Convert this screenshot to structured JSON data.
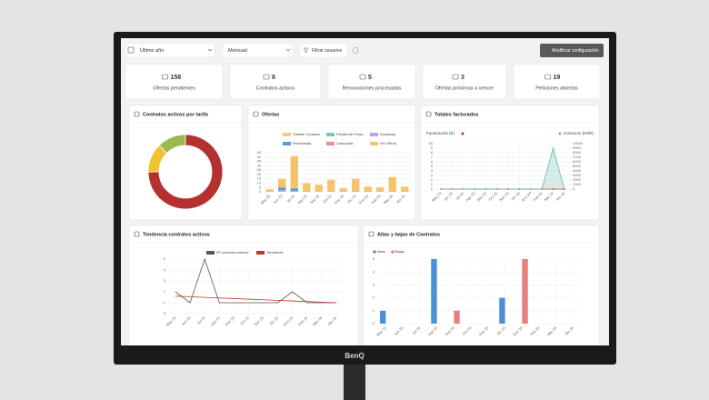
{
  "monitor": {
    "brand": "BenQ"
  },
  "toolbar": {
    "period": "Último año",
    "granularity": "Mensual",
    "filter": "Filtrar usuarios",
    "settings": "Modificar configuración"
  },
  "stats": [
    {
      "value": 158,
      "label": "Ofertas pendientes"
    },
    {
      "value": 8,
      "label": "Contratos activos"
    },
    {
      "value": 5,
      "label": "Renovaciones procesadas"
    },
    {
      "value": 3,
      "label": "Ofertas próximas a vencer"
    },
    {
      "value": 19,
      "label": "Peticiones abiertas"
    }
  ],
  "panels": [
    {
      "title": "Contratos activos por tarifa",
      "type": "pie",
      "values": [
        6,
        1,
        1
      ],
      "colors": [
        "#b5312f",
        "#f2c12e",
        "#9bb84f"
      ]
    },
    {
      "title": "Ofertas",
      "type": "bar",
      "stacked": true,
      "categories": [
        "May 23",
        "Jun 23",
        "Jul 23",
        "Ago 23",
        "Sep 23",
        "Oct 23",
        "Nov 23",
        "Dic 23",
        "Ene 24",
        "Feb 24",
        "Mar 24",
        "Abr 24"
      ],
      "series": [
        {
          "name": "Trámite Contrato",
          "color": "#f7c97e",
          "values": [
            0,
            0,
            0,
            0,
            0,
            0,
            0,
            0,
            0,
            0,
            0,
            0
          ]
        },
        {
          "name": "Pendiente Firma",
          "color": "#7cc6b6",
          "values": [
            0,
            0,
            0,
            0,
            0,
            0,
            0,
            0,
            0,
            0,
            0,
            0
          ]
        },
        {
          "name": "Aceptada",
          "color": "#b9a6dc",
          "values": [
            0,
            2,
            1,
            0,
            0,
            0,
            0,
            0,
            0,
            0,
            0,
            0
          ]
        },
        {
          "name": "Rechazada",
          "color": "#5b9bd5",
          "values": [
            0,
            3,
            3,
            0,
            0,
            0,
            0,
            0,
            0,
            0,
            0,
            0
          ]
        },
        {
          "name": "Caducada",
          "color": "#ee8e8e",
          "values": [
            0,
            0,
            0,
            0,
            0,
            0,
            0,
            0,
            0,
            0,
            0,
            0
          ]
        },
        {
          "name": "Sin Oferta",
          "color": "#f3c46b",
          "values": [
            3,
            10,
            37,
            10,
            8,
            14,
            4,
            15,
            6,
            5,
            17,
            6
          ]
        }
      ],
      "ylim": [
        0,
        45
      ],
      "yticks": [
        0,
        5,
        10,
        15,
        20,
        25,
        30,
        35,
        40,
        45
      ],
      "grid": true
    },
    {
      "title": "Totales facturados",
      "type": "line",
      "categories": [
        "May 23",
        "Jun 23",
        "Jul 23",
        "Ago 23",
        "Sep 23",
        "Oct 23",
        "Nov 23",
        "Dic 23",
        "Ene 24",
        "Feb 24",
        "Mar 24",
        "Abr 24"
      ],
      "series": [
        {
          "name": "Facturación (€)",
          "color": "#c0392b",
          "values": [
            0,
            0,
            0,
            0,
            0,
            0,
            0,
            0,
            0,
            0,
            0,
            0
          ],
          "markers": true
        },
        {
          "name": "Consumo (kWh)",
          "color": "#5fb8a8",
          "values": [
            0,
            0,
            0,
            0,
            0,
            0,
            0,
            0,
            0,
            0,
            9000,
            0
          ],
          "axis": "y2",
          "fill": true
        }
      ],
      "ylim": [
        0,
        10
      ],
      "yticks": [
        0,
        1,
        2,
        3,
        4,
        5,
        6,
        7,
        8,
        9,
        10
      ],
      "y2lim": [
        0,
        10000
      ],
      "y2ticks": [
        0,
        1000,
        2000,
        3000,
        4000,
        5000,
        6000,
        7000,
        8000,
        9000,
        10000
      ],
      "grid": true
    },
    {
      "title": "Tendencia contratos activos",
      "type": "line",
      "categories": [
        "May 23",
        "Jun 23",
        "Jul 23",
        "Ago 23",
        "Sep 23",
        "Oct 23",
        "Nov 23",
        "Dic 23",
        "Ene 24",
        "Feb 24",
        "Mar 24",
        "Abr 24"
      ],
      "series": [
        {
          "name": "Nº contratos activos",
          "color": "#555555",
          "values": [
            2,
            1,
            5,
            1,
            1,
            1,
            1,
            1,
            2,
            1,
            1,
            1
          ]
        },
        {
          "name": "Tendencia",
          "color": "#c0392b",
          "values": [
            1.6,
            1.55,
            1.49,
            1.44,
            1.38,
            1.33,
            1.27,
            1.22,
            1.16,
            1.11,
            1.05,
            1.0
          ]
        }
      ],
      "ylim": [
        0,
        5
      ],
      "yticks": [
        0,
        1,
        2,
        3,
        4,
        5
      ],
      "grid": true
    },
    {
      "title": "Altas y bajas de Contratos",
      "type": "bar",
      "stacked": false,
      "categories": [
        "May 23",
        "Jun 23",
        "Jul 23",
        "Ago 23",
        "Sep 23",
        "Oct 23",
        "Nov 23",
        "Dic 23",
        "Ene 24",
        "Feb 24",
        "Mar 24",
        "Abr 24"
      ],
      "series": [
        {
          "name": "Altas",
          "color": "#4a90d9",
          "values": [
            1,
            0,
            0,
            5,
            0,
            0,
            0,
            2,
            0,
            0,
            0,
            0
          ]
        },
        {
          "name": "Bajas",
          "color": "#e98080",
          "values": [
            0,
            0,
            0,
            0,
            1,
            0,
            0,
            0,
            5,
            0,
            0,
            0
          ]
        }
      ],
      "ylim": [
        0,
        5
      ],
      "yticks": [
        0,
        1,
        2,
        3,
        4,
        5
      ],
      "grid": true
    }
  ]
}
